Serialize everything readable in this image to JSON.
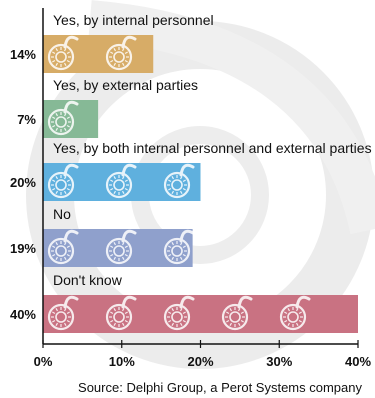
{
  "chart_data": {
    "type": "bar",
    "orientation": "horizontal",
    "categories": [
      "Yes, by internal personnel",
      "Yes, by external parties",
      "Yes, by both internal personnel and external parties",
      "No",
      "Don't know"
    ],
    "values": [
      14,
      7,
      20,
      19,
      40
    ],
    "value_labels": [
      "14%",
      "7%",
      "20%",
      "19%",
      "40%"
    ],
    "xlim": [
      0,
      40
    ],
    "xticks": [
      "0%",
      "10%",
      "20%",
      "30%",
      "40%"
    ],
    "grid": false,
    "legend": "none",
    "bar_colors": [
      "#d7ac67",
      "#86b996",
      "#5fb0de",
      "#8fa0cc",
      "#c97282"
    ],
    "icon": "padlock-icon"
  },
  "source": "Source: Delphi Group, a Perot Systems company"
}
